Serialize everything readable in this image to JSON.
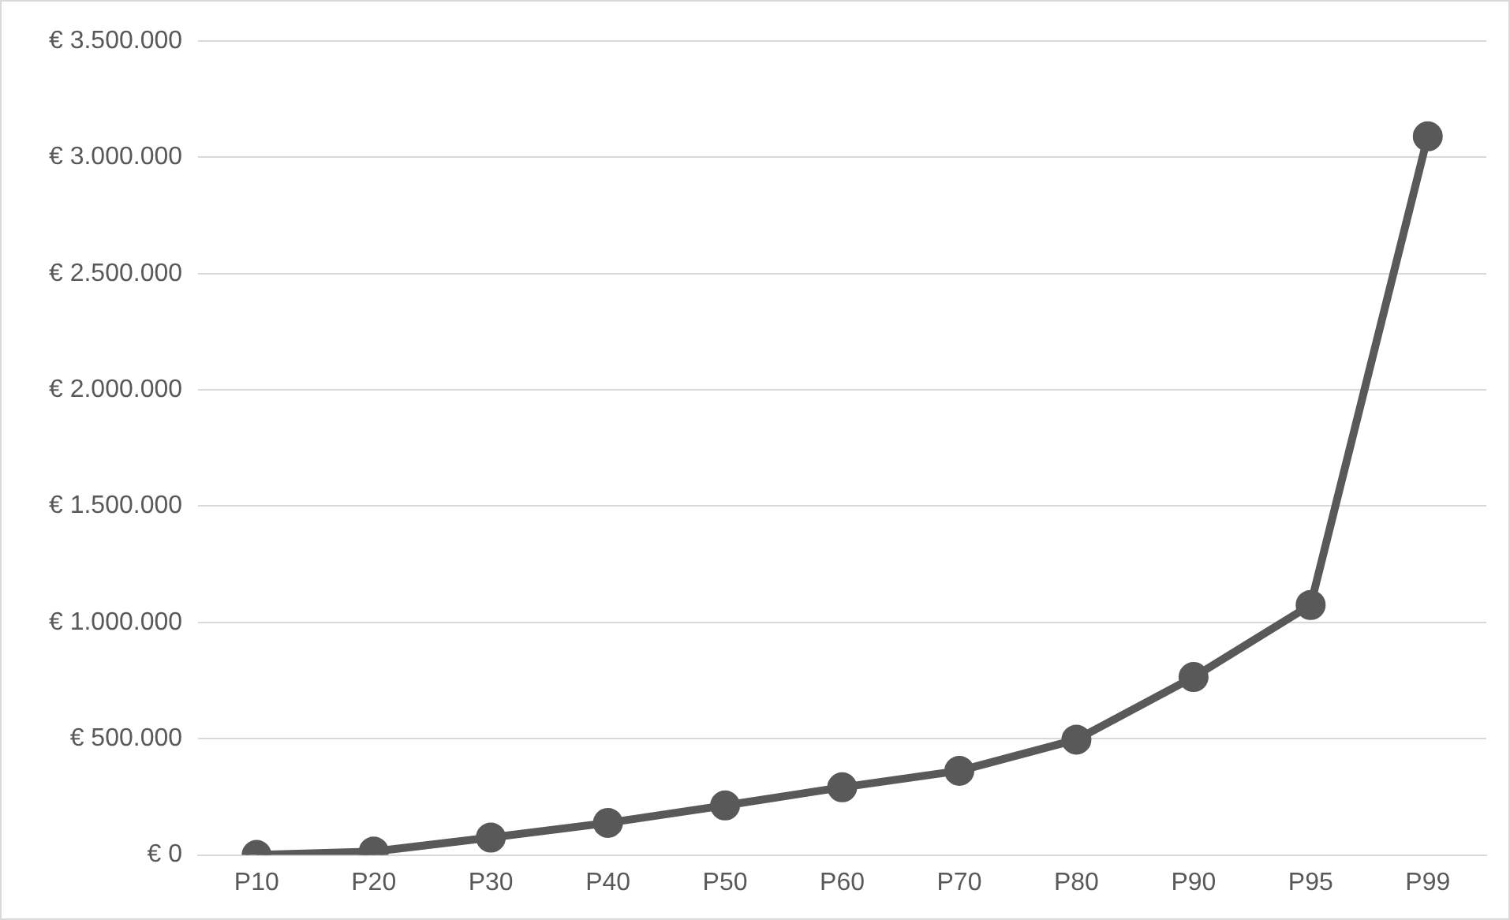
{
  "chart_data": {
    "type": "line",
    "categories": [
      "P10",
      "P20",
      "P30",
      "P40",
      "P50",
      "P60",
      "P70",
      "P80",
      "P90",
      "P95",
      "P99"
    ],
    "series": [
      {
        "color": "#595959",
        "values": [
          0,
          15000,
          75000,
          138000,
          213000,
          291000,
          362000,
          496000,
          765000,
          1075000,
          3090000
        ]
      }
    ],
    "ylim": [
      0,
      3500000
    ],
    "yticks": [
      {
        "value": 0,
        "label": "€ 0"
      },
      {
        "value": 500000,
        "label": "€ 500.000"
      },
      {
        "value": 1000000,
        "label": "€ 1.000.000"
      },
      {
        "value": 1500000,
        "label": "€ 1.500.000"
      },
      {
        "value": 2000000,
        "label": "€ 2.000.000"
      },
      {
        "value": 2500000,
        "label": "€ 2.500.000"
      },
      {
        "value": 3000000,
        "label": "€ 3.000.000"
      },
      {
        "value": 3500000,
        "label": "€ 3.500.000"
      }
    ],
    "grid": "y",
    "legend": false,
    "marker": "circle",
    "line_style": "solid"
  }
}
